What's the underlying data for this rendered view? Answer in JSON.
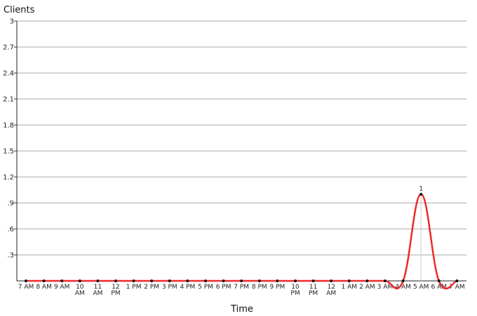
{
  "chart_data": {
    "type": "line",
    "title": "",
    "ylabel": "Clients",
    "xlabel": "Time",
    "ylim": [
      0,
      3
    ],
    "yticks": [
      {
        "value": 3,
        "label": "3"
      },
      {
        "value": 2.7,
        "label": "2.7"
      },
      {
        "value": 2.4,
        "label": "2.4"
      },
      {
        "value": 2.1,
        "label": "2.1"
      },
      {
        "value": 1.8,
        "label": "1.8"
      },
      {
        "value": 1.5,
        "label": "1.5"
      },
      {
        "value": 1.2,
        "label": "1.2"
      },
      {
        "value": 0.9,
        "label": ".9"
      },
      {
        "value": 0.6,
        "label": ".6"
      },
      {
        "value": 0.3,
        "label": ".3"
      }
    ],
    "grid": true,
    "categories": [
      "7 AM",
      "8 AM",
      "9 AM",
      "10 AM",
      "11 AM",
      "12 PM",
      "1 PM",
      "2 PM",
      "3 PM",
      "4 PM",
      "5 PM",
      "6 PM",
      "7 PM",
      "8 PM",
      "9 PM",
      "10 PM",
      "11 PM",
      "12 AM",
      "1 AM",
      "2 AM",
      "3 AM",
      "4 AM",
      "5 AM",
      "6 AM",
      "7 AM"
    ],
    "series": [
      {
        "color": "#ee2a2a",
        "values": [
          0,
          0,
          0,
          0,
          0,
          0,
          0,
          0,
          0,
          0,
          0,
          0,
          0,
          0,
          0,
          0,
          0,
          0,
          0,
          0,
          0,
          0,
          1,
          0,
          0
        ]
      }
    ],
    "data_labels": [
      {
        "index": 22,
        "label": "1"
      }
    ]
  }
}
